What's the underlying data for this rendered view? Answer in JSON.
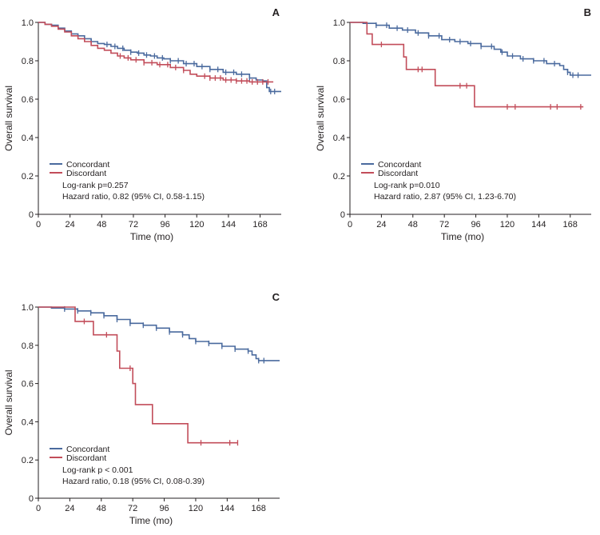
{
  "chart_data": [
    {
      "type": "line",
      "panel_label": "A",
      "xlabel": "Time (mo)",
      "ylabel": "Overall survival",
      "xlim": [
        0,
        184
      ],
      "ylim": [
        0,
        1.0
      ],
      "xticks": [
        "0",
        "24",
        "48",
        "72",
        "96",
        "120",
        "144",
        "168"
      ],
      "yticks": [
        "0",
        "0.2",
        "0.4",
        "0.6",
        "0.8",
        "1.0"
      ],
      "legend": [
        "Concordant",
        "Discordant"
      ],
      "stats": [
        "Log-rank p=0.257",
        "Hazard ratio, 0.82 (95% CI, 0.58-1.15)"
      ],
      "colors": {
        "Concordant": "#4a6a9e",
        "Discordant": "#c24d5a"
      },
      "series": [
        {
          "name": "Concordant",
          "points": [
            [
              0,
              1.0
            ],
            [
              5,
              0.99
            ],
            [
              10,
              0.985
            ],
            [
              15,
              0.97
            ],
            [
              20,
              0.955
            ],
            [
              25,
              0.94
            ],
            [
              30,
              0.93
            ],
            [
              35,
              0.915
            ],
            [
              40,
              0.9
            ],
            [
              45,
              0.89
            ],
            [
              50,
              0.885
            ],
            [
              55,
              0.875
            ],
            [
              60,
              0.865
            ],
            [
              65,
              0.855
            ],
            [
              70,
              0.845
            ],
            [
              75,
              0.84
            ],
            [
              80,
              0.83
            ],
            [
              85,
              0.825
            ],
            [
              90,
              0.815
            ],
            [
              95,
              0.81
            ],
            [
              100,
              0.8
            ],
            [
              110,
              0.785
            ],
            [
              120,
              0.77
            ],
            [
              130,
              0.755
            ],
            [
              140,
              0.74
            ],
            [
              150,
              0.73
            ],
            [
              160,
              0.71
            ],
            [
              165,
              0.7
            ],
            [
              170,
              0.695
            ],
            [
              173,
              0.66
            ],
            [
              175,
              0.64
            ],
            [
              184,
              0.64
            ]
          ],
          "censor": [
            40,
            52,
            58,
            64,
            70,
            76,
            82,
            88,
            94,
            100,
            106,
            112,
            118,
            124,
            130,
            136,
            142,
            148,
            154,
            160,
            176,
            179
          ]
        },
        {
          "name": "Discordant",
          "points": [
            [
              0,
              1.0
            ],
            [
              5,
              0.99
            ],
            [
              10,
              0.98
            ],
            [
              15,
              0.965
            ],
            [
              20,
              0.95
            ],
            [
              25,
              0.93
            ],
            [
              30,
              0.915
            ],
            [
              35,
              0.9
            ],
            [
              40,
              0.88
            ],
            [
              45,
              0.865
            ],
            [
              50,
              0.855
            ],
            [
              55,
              0.84
            ],
            [
              60,
              0.825
            ],
            [
              65,
              0.815
            ],
            [
              70,
              0.805
            ],
            [
              80,
              0.79
            ],
            [
              90,
              0.78
            ],
            [
              100,
              0.765
            ],
            [
              110,
              0.75
            ],
            [
              115,
              0.73
            ],
            [
              120,
              0.72
            ],
            [
              130,
              0.71
            ],
            [
              140,
              0.7
            ],
            [
              150,
              0.695
            ],
            [
              160,
              0.69
            ],
            [
              170,
              0.69
            ],
            [
              178,
              0.69
            ]
          ],
          "censor": [
            62,
            68,
            74,
            80,
            86,
            92,
            98,
            104,
            110,
            126,
            130,
            134,
            138,
            142,
            146,
            150,
            154,
            158,
            162,
            166,
            170,
            174
          ]
        }
      ]
    },
    {
      "type": "line",
      "panel_label": "B",
      "xlabel": "Time (mo)",
      "ylabel": "Overall survival",
      "xlim": [
        0,
        184
      ],
      "ylim": [
        0,
        1.0
      ],
      "xticks": [
        "0",
        "24",
        "48",
        "72",
        "96",
        "120",
        "144",
        "168"
      ],
      "yticks": [
        "0",
        "0.2",
        "0.4",
        "0.6",
        "0.8",
        "1.0"
      ],
      "legend": [
        "Concordant",
        "Discordant"
      ],
      "stats": [
        "Log-rank p=0.010",
        "Hazard ratio, 2.87 (95% CI, 1.23-6.70)"
      ],
      "colors": {
        "Concordant": "#4a6a9e",
        "Discordant": "#c24d5a"
      },
      "series": [
        {
          "name": "Concordant",
          "points": [
            [
              0,
              1.0
            ],
            [
              10,
              0.995
            ],
            [
              20,
              0.985
            ],
            [
              30,
              0.97
            ],
            [
              40,
              0.96
            ],
            [
              50,
              0.945
            ],
            [
              60,
              0.93
            ],
            [
              70,
              0.91
            ],
            [
              80,
              0.9
            ],
            [
              90,
              0.89
            ],
            [
              100,
              0.875
            ],
            [
              110,
              0.86
            ],
            [
              115,
              0.845
            ],
            [
              120,
              0.825
            ],
            [
              130,
              0.81
            ],
            [
              140,
              0.8
            ],
            [
              150,
              0.785
            ],
            [
              160,
              0.775
            ],
            [
              163,
              0.755
            ],
            [
              166,
              0.74
            ],
            [
              168,
              0.725
            ],
            [
              184,
              0.725
            ]
          ],
          "censor": [
            20,
            28,
            36,
            44,
            52,
            60,
            68,
            76,
            84,
            92,
            100,
            108,
            116,
            124,
            132,
            140,
            148,
            156,
            166,
            170,
            174
          ]
        },
        {
          "name": "Discordant",
          "points": [
            [
              0,
              1.0
            ],
            [
              13,
              1.0
            ],
            [
              13,
              0.94
            ],
            [
              17,
              0.94
            ],
            [
              17,
              0.885
            ],
            [
              41,
              0.885
            ],
            [
              41,
              0.82
            ],
            [
              43,
              0.82
            ],
            [
              43,
              0.755
            ],
            [
              65,
              0.755
            ],
            [
              65,
              0.67
            ],
            [
              95,
              0.67
            ],
            [
              95,
              0.56
            ],
            [
              178,
              0.56
            ]
          ],
          "censor": [
            24,
            52,
            55,
            84,
            89,
            120,
            126,
            153,
            158,
            176
          ]
        }
      ]
    },
    {
      "type": "line",
      "panel_label": "C",
      "xlabel": "Time (mo)",
      "ylabel": "Overall survival",
      "xlim": [
        0,
        184
      ],
      "ylim": [
        0,
        1.0
      ],
      "xticks": [
        "0",
        "24",
        "48",
        "72",
        "96",
        "120",
        "144",
        "168"
      ],
      "yticks": [
        "0",
        "0.2",
        "0.4",
        "0.6",
        "0.8",
        "1.0"
      ],
      "legend": [
        "Concordant",
        "Discordant"
      ],
      "stats": [
        "Log-rank p < 0.001",
        "Hazard ratio, 0.18 (95% CI, 0.08-0.39)"
      ],
      "colors": {
        "Concordant": "#4a6a9e",
        "Discordant": "#c24d5a"
      },
      "series": [
        {
          "name": "Concordant",
          "points": [
            [
              0,
              1.0
            ],
            [
              10,
              0.995
            ],
            [
              20,
              0.99
            ],
            [
              30,
              0.98
            ],
            [
              40,
              0.97
            ],
            [
              50,
              0.955
            ],
            [
              60,
              0.935
            ],
            [
              70,
              0.915
            ],
            [
              80,
              0.905
            ],
            [
              90,
              0.89
            ],
            [
              100,
              0.87
            ],
            [
              110,
              0.855
            ],
            [
              115,
              0.835
            ],
            [
              120,
              0.82
            ],
            [
              130,
              0.81
            ],
            [
              140,
              0.795
            ],
            [
              150,
              0.78
            ],
            [
              160,
              0.77
            ],
            [
              163,
              0.75
            ],
            [
              166,
              0.73
            ],
            [
              168,
              0.72
            ],
            [
              184,
              0.72
            ]
          ],
          "censor": [
            20,
            30,
            40,
            50,
            60,
            70,
            80,
            90,
            100,
            110,
            120,
            130,
            140,
            150,
            160,
            168,
            172
          ]
        },
        {
          "name": "Discordant",
          "points": [
            [
              0,
              1.0
            ],
            [
              28,
              1.0
            ],
            [
              28,
              0.925
            ],
            [
              42,
              0.925
            ],
            [
              42,
              0.855
            ],
            [
              60,
              0.855
            ],
            [
              60,
              0.77
            ],
            [
              62,
              0.77
            ],
            [
              62,
              0.68
            ],
            [
              72,
              0.68
            ],
            [
              72,
              0.6
            ],
            [
              74,
              0.6
            ],
            [
              74,
              0.49
            ],
            [
              87,
              0.49
            ],
            [
              87,
              0.39
            ],
            [
              114,
              0.39
            ],
            [
              114,
              0.29
            ],
            [
              152,
              0.29
            ]
          ],
          "censor": [
            35,
            52,
            70,
            124,
            146,
            152
          ]
        }
      ]
    }
  ]
}
